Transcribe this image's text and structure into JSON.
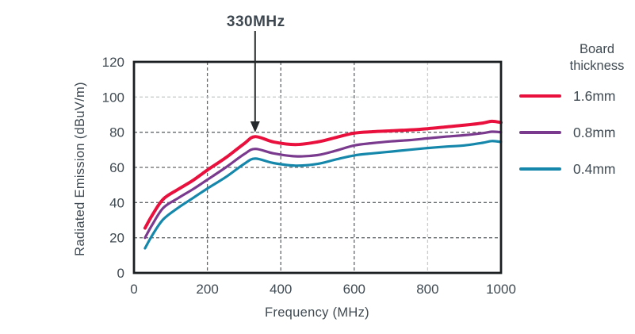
{
  "palette": {
    "background": "#ffffff",
    "text": "#3f4a52",
    "axis_frame": "#1b1e20",
    "grid_dark": "#63686b",
    "grid_light": "#c9cdce"
  },
  "legend": {
    "title": "Board thickness"
  },
  "chart_data": {
    "type": "line",
    "title": "",
    "xlabel": "Frequency (MHz)",
    "ylabel": "Radiated Emission (dBuV/m)",
    "xlim": [
      0,
      1000
    ],
    "ylim": [
      0,
      120
    ],
    "x_ticks": [
      0,
      200,
      400,
      600,
      800,
      1000
    ],
    "y_ticks": [
      0,
      20,
      40,
      60,
      80,
      100,
      120
    ],
    "grid": {
      "style": "dashed",
      "light_x_lines": [
        800
      ],
      "light_y_lines": [
        100
      ]
    },
    "legend_position": "right",
    "annotation": {
      "text": "330MHz",
      "x_mhz": 330,
      "points_to": "1.6mm curve peak"
    },
    "x_mhz": [
      30,
      50,
      80,
      120,
      160,
      200,
      250,
      300,
      330,
      380,
      440,
      500,
      550,
      600,
      650,
      700,
      750,
      800,
      850,
      900,
      950,
      975,
      1000
    ],
    "series": [
      {
        "name": "1.6mm",
        "color": "#e9103d",
        "line_width": 4,
        "values_dbuv_m": [
          25.5,
          33,
          42,
          47.5,
          52.5,
          58.5,
          65.5,
          73.5,
          77.5,
          74.5,
          73,
          74.5,
          77,
          79.5,
          80.3,
          80.8,
          81.3,
          82,
          83,
          84,
          85.2,
          86.2,
          85.5
        ]
      },
      {
        "name": "0.8mm",
        "color": "#7a3b8e",
        "line_width": 3.2,
        "values_dbuv_m": [
          20,
          27.5,
          37,
          42.5,
          47.5,
          53,
          60,
          67.5,
          70.5,
          68,
          66.3,
          67,
          69.5,
          72.5,
          73.8,
          74.8,
          75.5,
          76.5,
          77.5,
          78.3,
          79.5,
          80.3,
          80
        ]
      },
      {
        "name": "0.4mm",
        "color": "#1487ab",
        "line_width": 3.2,
        "values_dbuv_m": [
          14,
          21.5,
          30.5,
          37,
          42.5,
          48,
          54.5,
          62,
          65,
          62.5,
          61,
          62,
          64.5,
          66.8,
          68,
          69,
          70,
          71,
          71.8,
          72.5,
          74,
          75,
          74.5
        ]
      }
    ]
  }
}
